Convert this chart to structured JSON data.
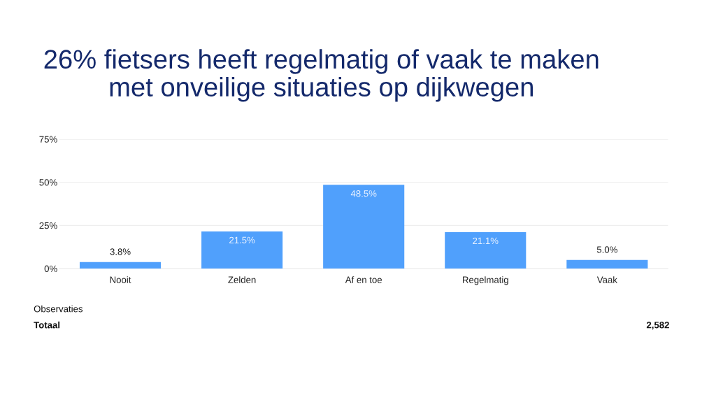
{
  "chart_data": {
    "type": "bar",
    "title": "26% fietsers heeft regelmatig of vaak te maken\nmet onveilige situaties op dijkwegen",
    "categories": [
      "Nooit",
      "Zelden",
      "Af en toe",
      "Regelmatig",
      "Vaak"
    ],
    "values": [
      3.8,
      21.5,
      48.5,
      21.1,
      5.0
    ],
    "value_labels": [
      "3.8%",
      "21.5%",
      "48.5%",
      "21.1%",
      "5.0%"
    ],
    "color": "#50a0fc",
    "ylim": [
      0,
      75
    ],
    "yticks": [
      {
        "value": 0,
        "label": "0%"
      },
      {
        "value": 25,
        "label": "25%"
      },
      {
        "value": 50,
        "label": "50%"
      },
      {
        "value": 75,
        "label": "75%"
      }
    ],
    "grid": "y",
    "legend": false,
    "annotations": [
      "Observaties",
      "Totaal",
      "2,582"
    ]
  }
}
